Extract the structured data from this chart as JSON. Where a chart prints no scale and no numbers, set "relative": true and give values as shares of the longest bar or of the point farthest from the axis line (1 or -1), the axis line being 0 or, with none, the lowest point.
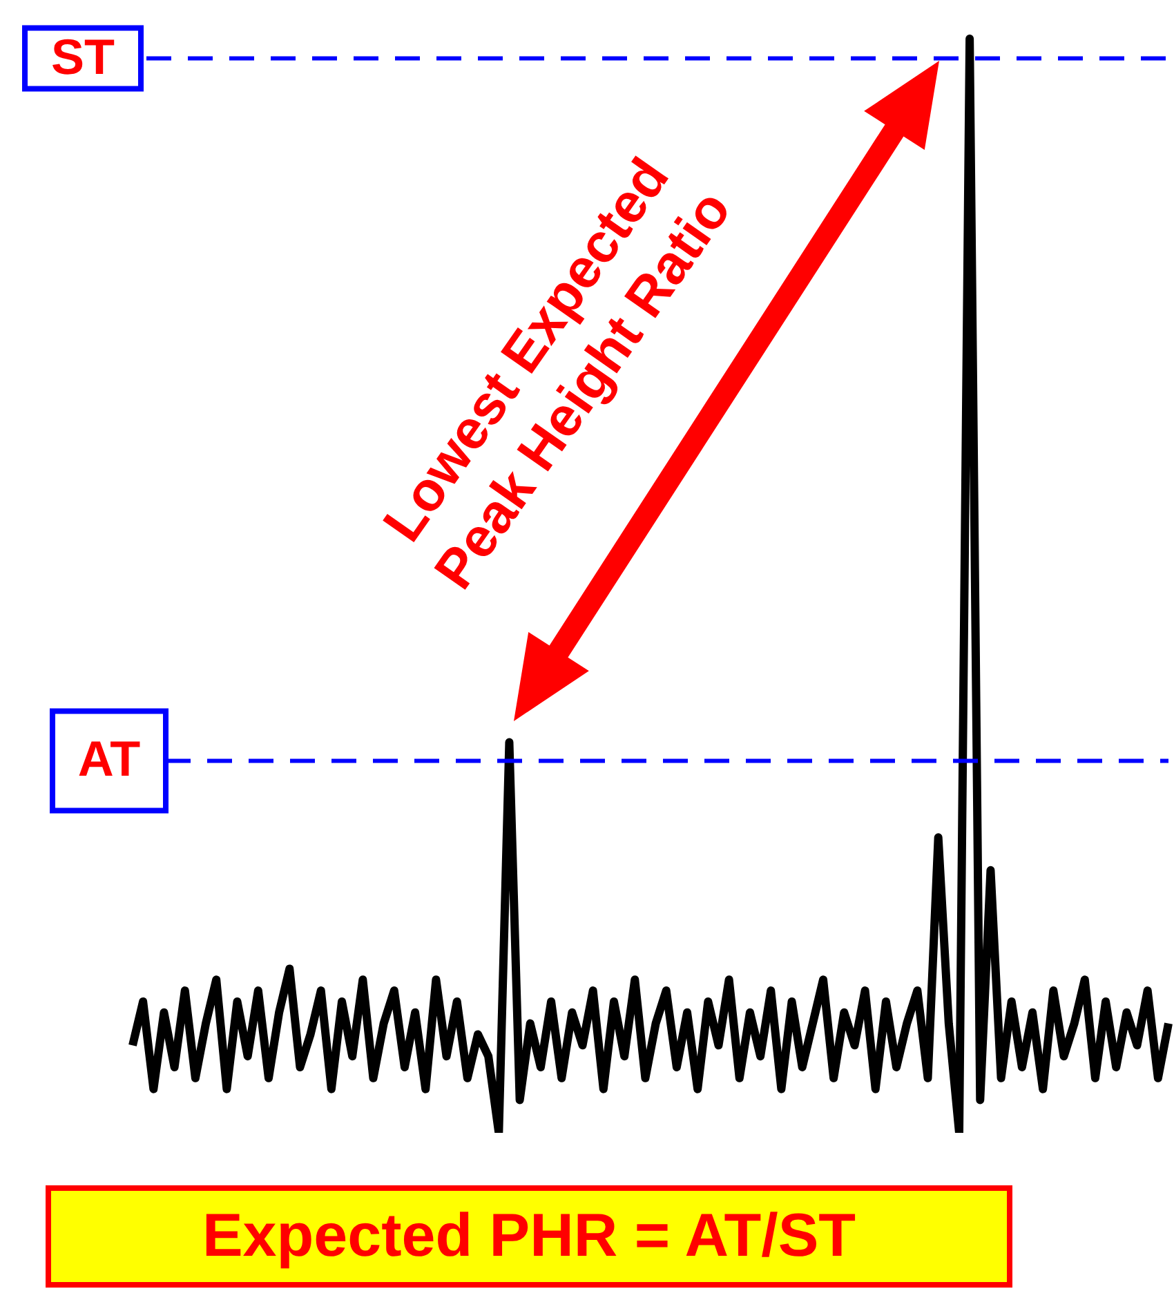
{
  "chart_data": {
    "type": "line",
    "relative": true,
    "categories": [
      null,
      null,
      null,
      null,
      null,
      null,
      null,
      null,
      null,
      null,
      null,
      null,
      null,
      null,
      null,
      null,
      null,
      null,
      null,
      null,
      null,
      null,
      null,
      null,
      null,
      null,
      null,
      null,
      null,
      null,
      null,
      null,
      null,
      null,
      null,
      null,
      null,
      null,
      null,
      null,
      null,
      null,
      null,
      null,
      null,
      null,
      null,
      null,
      null,
      null,
      null,
      null,
      null,
      null,
      null,
      null,
      null,
      null,
      null,
      null,
      null,
      null,
      null,
      null,
      null,
      null,
      null,
      null,
      null,
      null,
      null,
      null,
      null,
      null,
      null,
      null,
      null,
      null,
      null,
      null,
      null,
      null,
      null,
      null,
      null,
      null,
      null,
      null,
      null,
      null,
      null,
      null,
      null,
      null,
      null,
      null,
      null,
      null,
      null,
      null
    ],
    "series": [
      {
        "color": "#000000",
        "values": [
          0.08,
          0.12,
          0.04,
          0.11,
          0.06,
          0.13,
          0.05,
          0.1,
          0.14,
          0.04,
          0.12,
          0.07,
          0.13,
          0.05,
          0.11,
          0.15,
          0.06,
          0.09,
          0.13,
          0.04,
          0.12,
          0.07,
          0.14,
          0.05,
          0.1,
          0.13,
          0.06,
          0.11,
          0.04,
          0.14,
          0.07,
          0.12,
          0.05,
          0.09,
          0.07,
          0.0,
          0.357,
          0.03,
          0.1,
          0.06,
          0.12,
          0.05,
          0.11,
          0.08,
          0.13,
          0.04,
          0.12,
          0.07,
          0.14,
          0.05,
          0.1,
          0.13,
          0.06,
          0.11,
          0.04,
          0.12,
          0.08,
          0.14,
          0.05,
          0.11,
          0.07,
          0.13,
          0.04,
          0.12,
          0.06,
          0.1,
          0.14,
          0.05,
          0.11,
          0.08,
          0.13,
          0.04,
          0.12,
          0.06,
          0.1,
          0.13,
          0.05,
          0.27,
          0.1,
          0.0,
          1.0,
          0.03,
          0.24,
          0.05,
          0.12,
          0.06,
          0.11,
          0.04,
          0.13,
          0.07,
          0.1,
          0.14,
          0.05,
          0.12,
          0.06,
          0.11,
          0.08,
          0.13,
          0.05,
          0.1
        ]
      }
    ],
    "ref_lines": [
      {
        "axis": "y",
        "value": 0.982,
        "label": "ST",
        "color": "#0000ff",
        "line_style": "dashed"
      },
      {
        "axis": "y",
        "value": 0.34,
        "label": "AT",
        "color": "#0000ff",
        "line_style": "dashed"
      }
    ],
    "annotations": [
      "Lowest Expected Peak Height Ratio",
      "Expected PHR = AT/ST"
    ],
    "line_style": "solid",
    "marker": "none",
    "legend": false
  }
}
